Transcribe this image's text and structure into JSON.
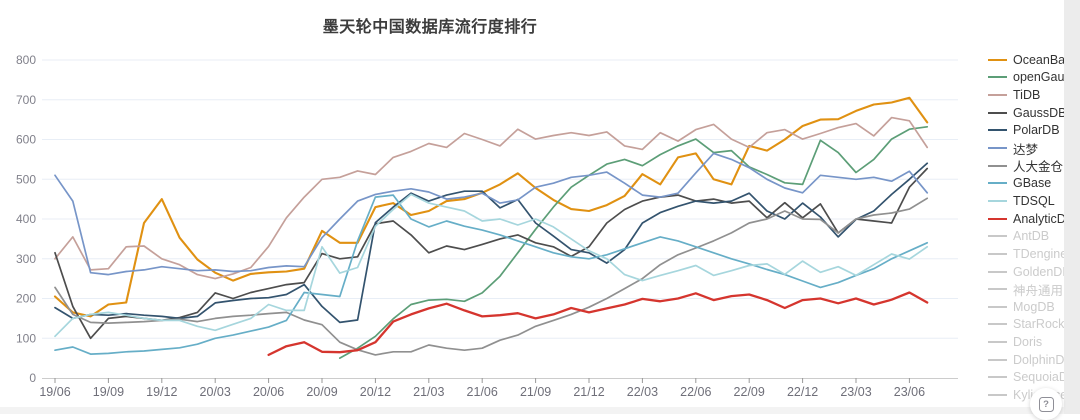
{
  "page": {
    "title": "墨天轮中国数据库流行度排行",
    "help_label": "?"
  },
  "chart_data": {
    "type": "line",
    "title": "墨天轮中国数据库流行度排行",
    "xlabel": "",
    "ylabel": "",
    "ylim": [
      0,
      800
    ],
    "y_ticks": [
      0,
      100,
      200,
      300,
      400,
      500,
      600,
      700,
      800
    ],
    "grid": true,
    "legend_position": "right",
    "x": [
      "19/06",
      "19/07",
      "19/08",
      "19/09",
      "19/10",
      "19/11",
      "19/12",
      "20/01",
      "20/02",
      "20/03",
      "20/04",
      "20/05",
      "20/06",
      "20/07",
      "20/08",
      "20/09",
      "20/10",
      "20/11",
      "20/12",
      "21/01",
      "21/02",
      "21/03",
      "21/04",
      "21/05",
      "21/06",
      "21/07",
      "21/08",
      "21/09",
      "21/10",
      "21/11",
      "21/12",
      "22/01",
      "22/02",
      "22/03",
      "22/04",
      "22/05",
      "22/06",
      "22/07",
      "22/08",
      "22/09",
      "22/10",
      "22/11",
      "22/12",
      "23/01",
      "23/02",
      "23/03",
      "23/04",
      "23/05",
      "23/06",
      "23/07"
    ],
    "x_tick_labels": [
      "19/06",
      "19/09",
      "19/12",
      "20/03",
      "20/06",
      "20/09",
      "20/12",
      "21/03",
      "21/06",
      "21/09",
      "21/12",
      "22/03",
      "22/06",
      "22/09",
      "22/12",
      "23/03",
      "23/06"
    ],
    "style": {
      "grid_color": "#e8eef6",
      "axis_color": "#cccccc",
      "tick_color": "#999999",
      "y_label_color": "#81818b",
      "x_label_color": "#6f6f79",
      "disabled_color": "#c8c8c8"
    },
    "series": [
      {
        "name": "OceanBase",
        "color": "#e09112",
        "width": 2.1,
        "values": [
          205,
          165,
          155,
          185,
          190,
          390,
          450,
          353,
          298,
          265,
          245,
          262,
          266,
          268,
          275,
          370,
          340,
          340,
          430,
          440,
          410,
          420,
          445,
          450,
          466,
          487,
          515,
          478,
          448,
          425,
          420,
          435,
          458,
          513,
          487,
          555,
          565,
          500,
          487,
          584,
          572,
          600,
          634,
          650,
          651,
          672,
          688,
          693,
          705,
          643
        ]
      },
      {
        "name": "openGauss",
        "color": "#5c9e77",
        "width": 1.7,
        "values": [
          null,
          null,
          null,
          null,
          null,
          null,
          null,
          null,
          null,
          null,
          null,
          null,
          null,
          null,
          null,
          null,
          50,
          75,
          105,
          149,
          185,
          196,
          198,
          193,
          214,
          256,
          315,
          374,
          430,
          480,
          510,
          538,
          550,
          534,
          562,
          584,
          601,
          567,
          572,
          531,
          512,
          491,
          487,
          598,
          567,
          517,
          550,
          601,
          626,
          632
        ]
      },
      {
        "name": "TiDB",
        "color": "#c5a09a",
        "width": 1.7,
        "values": [
          300,
          355,
          272,
          275,
          330,
          332,
          300,
          285,
          260,
          250,
          262,
          278,
          331,
          403,
          455,
          500,
          505,
          521,
          512,
          555,
          570,
          590,
          580,
          615,
          600,
          584,
          626,
          601,
          610,
          617,
          610,
          619,
          584,
          575,
          617,
          596,
          625,
          638,
          601,
          580,
          617,
          625,
          601,
          615,
          630,
          640,
          609,
          655,
          647,
          580
        ]
      },
      {
        "name": "GaussDB",
        "color": "#4d4d4d",
        "width": 1.7,
        "values": [
          315,
          180,
          100,
          150,
          155,
          150,
          145,
          152,
          165,
          214,
          200,
          215,
          225,
          235,
          240,
          313,
          300,
          305,
          388,
          395,
          360,
          315,
          332,
          323,
          336,
          350,
          360,
          340,
          330,
          306,
          330,
          390,
          424,
          445,
          455,
          460,
          445,
          450,
          440,
          445,
          403,
          441,
          403,
          438,
          365,
          400,
          395,
          390,
          480,
          527
        ]
      },
      {
        "name": "PolarDB",
        "color": "#33536e",
        "width": 1.7,
        "values": [
          177,
          150,
          160,
          158,
          162,
          158,
          155,
          150,
          155,
          189,
          195,
          200,
          202,
          210,
          235,
          180,
          140,
          146,
          391,
          430,
          465,
          445,
          460,
          470,
          470,
          428,
          449,
          390,
          357,
          323,
          315,
          289,
          323,
          390,
          416,
          432,
          445,
          440,
          445,
          465,
          420,
          400,
          440,
          405,
          355,
          399,
          420,
          462,
          500,
          540
        ]
      },
      {
        "name": "达梦",
        "color": "#7795c8",
        "width": 1.7,
        "values": [
          510,
          445,
          265,
          260,
          268,
          272,
          280,
          275,
          270,
          272,
          268,
          270,
          278,
          282,
          280,
          353,
          400,
          445,
          462,
          470,
          476,
          468,
          450,
          455,
          465,
          440,
          448,
          480,
          490,
          505,
          510,
          518,
          490,
          460,
          455,
          465,
          516,
          565,
          550,
          529,
          500,
          478,
          466,
          510,
          505,
          500,
          505,
          495,
          520,
          466
        ]
      },
      {
        "name": "人大金仓",
        "color": "#909090",
        "width": 1.7,
        "values": [
          228,
          160,
          140,
          138,
          140,
          142,
          145,
          148,
          142,
          150,
          155,
          158,
          162,
          165,
          146,
          134,
          90,
          71,
          58,
          66,
          66,
          83,
          75,
          70,
          75,
          95,
          108,
          130,
          145,
          160,
          178,
          200,
          225,
          250,
          285,
          310,
          327,
          345,
          365,
          390,
          400,
          420,
          400,
          399,
          365,
          400,
          410,
          415,
          425,
          452
        ]
      },
      {
        "name": "GBase",
        "color": "#66aec7",
        "width": 1.7,
        "values": [
          70,
          78,
          60,
          62,
          66,
          68,
          72,
          76,
          85,
          100,
          108,
          118,
          128,
          145,
          215,
          210,
          205,
          345,
          455,
          460,
          400,
          380,
          395,
          382,
          372,
          360,
          345,
          330,
          315,
          305,
          300,
          310,
          325,
          340,
          355,
          345,
          330,
          315,
          300,
          287,
          273,
          260,
          244,
          228,
          240,
          258,
          275,
          300,
          320,
          340
        ]
      },
      {
        "name": "TDSQL",
        "color": "#a6d6dd",
        "width": 1.7,
        "values": [
          105,
          150,
          160,
          165,
          158,
          150,
          145,
          145,
          130,
          120,
          135,
          150,
          185,
          170,
          170,
          330,
          264,
          278,
          382,
          424,
          462,
          440,
          430,
          420,
          395,
          400,
          385,
          400,
          380,
          350,
          320,
          300,
          260,
          245,
          258,
          270,
          283,
          258,
          270,
          283,
          287,
          261,
          294,
          266,
          280,
          258,
          285,
          312,
          299,
          330
        ]
      },
      {
        "name": "AnalyticDB",
        "color": "#d5352e",
        "width": 2.3,
        "values": [
          null,
          null,
          null,
          null,
          null,
          null,
          null,
          null,
          null,
          null,
          null,
          null,
          58,
          80,
          90,
          66,
          65,
          70,
          90,
          142,
          160,
          175,
          187,
          170,
          155,
          158,
          163,
          150,
          160,
          176,
          165,
          175,
          185,
          199,
          193,
          200,
          213,
          196,
          206,
          210,
          196,
          176,
          196,
          200,
          188,
          200,
          185,
          197,
          215,
          190
        ]
      }
    ],
    "legend_disabled": [
      "AntDB",
      "TDengine",
      "GoldenDB",
      "神舟通用",
      "MogDB",
      "StarRocks",
      "Doris",
      "DolphinDB",
      "SequoiaDB",
      "Kyligence"
    ]
  }
}
